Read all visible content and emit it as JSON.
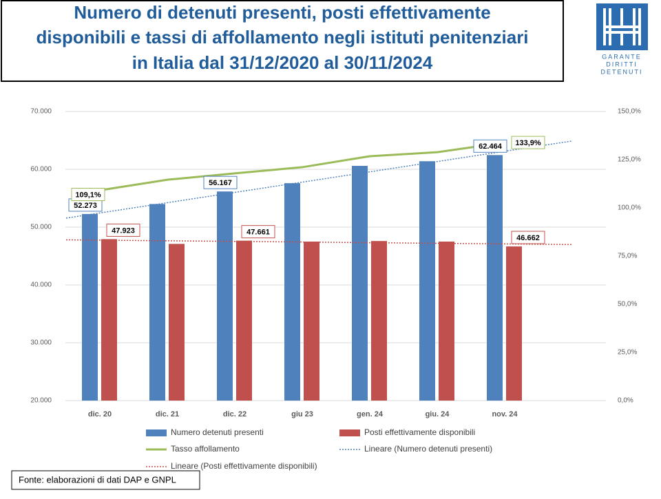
{
  "chart_data": {
    "type": "bar",
    "title": [
      "Numero di detenuti presenti, posti effettivamente",
      "disponibili e tassi di affollamento negli istituti penitenziari",
      "in Italia dal 31/12/2020 al 30/11/2024"
    ],
    "logo": [
      "GARANTE",
      "DIRITTI",
      "DETENUTI"
    ],
    "source": "Fonte: elaborazioni di dati DAP e GNPL",
    "categories": [
      "dic. 20",
      "dic. 21",
      "dic. 22",
      "giu 23",
      "gen. 24",
      "giu. 24",
      "nov. 24"
    ],
    "series": [
      {
        "name": "Numero detenuti presenti",
        "type": "bar",
        "color": "#4f81bd",
        "values": [
          52273,
          54000,
          56167,
          57600,
          60600,
          61400,
          62464
        ],
        "value_labels": [
          "52.273",
          null,
          "56.167",
          null,
          null,
          null,
          "62.464"
        ]
      },
      {
        "name": "Posti effettivamente disponibili",
        "type": "bar",
        "color": "#c0504d",
        "values": [
          47923,
          47100,
          47661,
          47500,
          47600,
          47500,
          46662
        ],
        "value_labels": [
          "47.923",
          null,
          "47.661",
          null,
          null,
          null,
          "46.662"
        ]
      },
      {
        "name": "Tasso affollamento",
        "type": "line",
        "axis": "y2",
        "color": "#9bbb59",
        "values": [
          109.1,
          114.6,
          117.9,
          121.1,
          126.8,
          128.9,
          133.9
        ],
        "value_labels": [
          "109,1%",
          null,
          null,
          null,
          null,
          null,
          "133,9%"
        ]
      }
    ],
    "trendlines": [
      {
        "name": "Lineare (Numero detenuti presenti)",
        "series": 0,
        "color": "#4f81bd"
      },
      {
        "name": "Lineare (Posti effettivamente disponibili)",
        "series": 1,
        "color": "#c0504d"
      }
    ],
    "ylim": [
      20000,
      70000
    ],
    "yticks": [
      {
        "value": 20000,
        "label": "20.000"
      },
      {
        "value": 30000,
        "label": "30.000"
      },
      {
        "value": 40000,
        "label": "40.000"
      },
      {
        "value": 50000,
        "label": "50.000"
      },
      {
        "value": 60000,
        "label": "60.000"
      },
      {
        "value": 70000,
        "label": "70.000"
      }
    ],
    "y2lim": [
      0,
      150
    ],
    "y2ticks": [
      {
        "value": 0,
        "label": "0,0%"
      },
      {
        "value": 25,
        "label": "25,0%"
      },
      {
        "value": 50,
        "label": "50,0%"
      },
      {
        "value": 75,
        "label": "75,0%"
      },
      {
        "value": 100,
        "label": "100,0%"
      },
      {
        "value": 125,
        "label": "125,0%"
      },
      {
        "value": 150,
        "label": "150,0%"
      }
    ],
    "grid": true
  }
}
